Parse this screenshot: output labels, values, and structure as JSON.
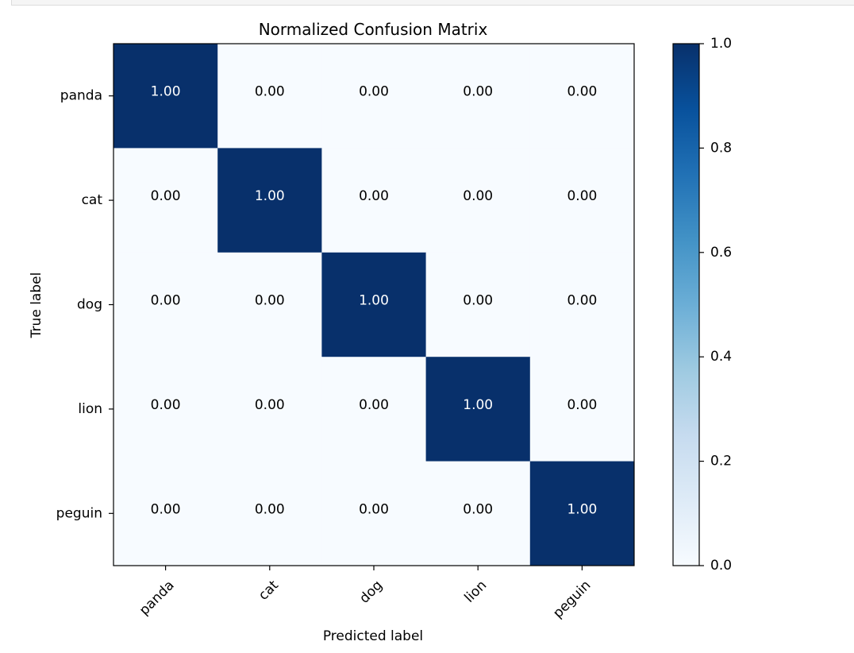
{
  "chart_data": {
    "type": "heatmap",
    "title": "Normalized Confusion Matrix",
    "xlabel": "Predicted label",
    "ylabel": "True label",
    "x_categories": [
      "panda",
      "cat",
      "dog",
      "lion",
      "peguin"
    ],
    "y_categories": [
      "panda",
      "cat",
      "dog",
      "lion",
      "peguin"
    ],
    "values": [
      [
        1.0,
        0.0,
        0.0,
        0.0,
        0.0
      ],
      [
        0.0,
        1.0,
        0.0,
        0.0,
        0.0
      ],
      [
        0.0,
        0.0,
        1.0,
        0.0,
        0.0
      ],
      [
        0.0,
        0.0,
        0.0,
        1.0,
        0.0
      ],
      [
        0.0,
        0.0,
        0.0,
        0.0,
        1.0
      ]
    ],
    "cell_labels": [
      [
        "1.00",
        "0.00",
        "0.00",
        "0.00",
        "0.00"
      ],
      [
        "0.00",
        "1.00",
        "0.00",
        "0.00",
        "0.00"
      ],
      [
        "0.00",
        "0.00",
        "1.00",
        "0.00",
        "0.00"
      ],
      [
        "0.00",
        "0.00",
        "0.00",
        "1.00",
        "0.00"
      ],
      [
        "0.00",
        "0.00",
        "0.00",
        "0.00",
        "1.00"
      ]
    ],
    "colormap": "Blues",
    "color_low": "#f7fbff",
    "color_high": "#08306b",
    "text_dark": "#000000",
    "text_light": "#ffffff",
    "colorbar": {
      "range": [
        0.0,
        1.0
      ],
      "ticks": [
        "0.0",
        "0.2",
        "0.4",
        "0.6",
        "0.8",
        "1.0"
      ]
    },
    "grid": false
  }
}
